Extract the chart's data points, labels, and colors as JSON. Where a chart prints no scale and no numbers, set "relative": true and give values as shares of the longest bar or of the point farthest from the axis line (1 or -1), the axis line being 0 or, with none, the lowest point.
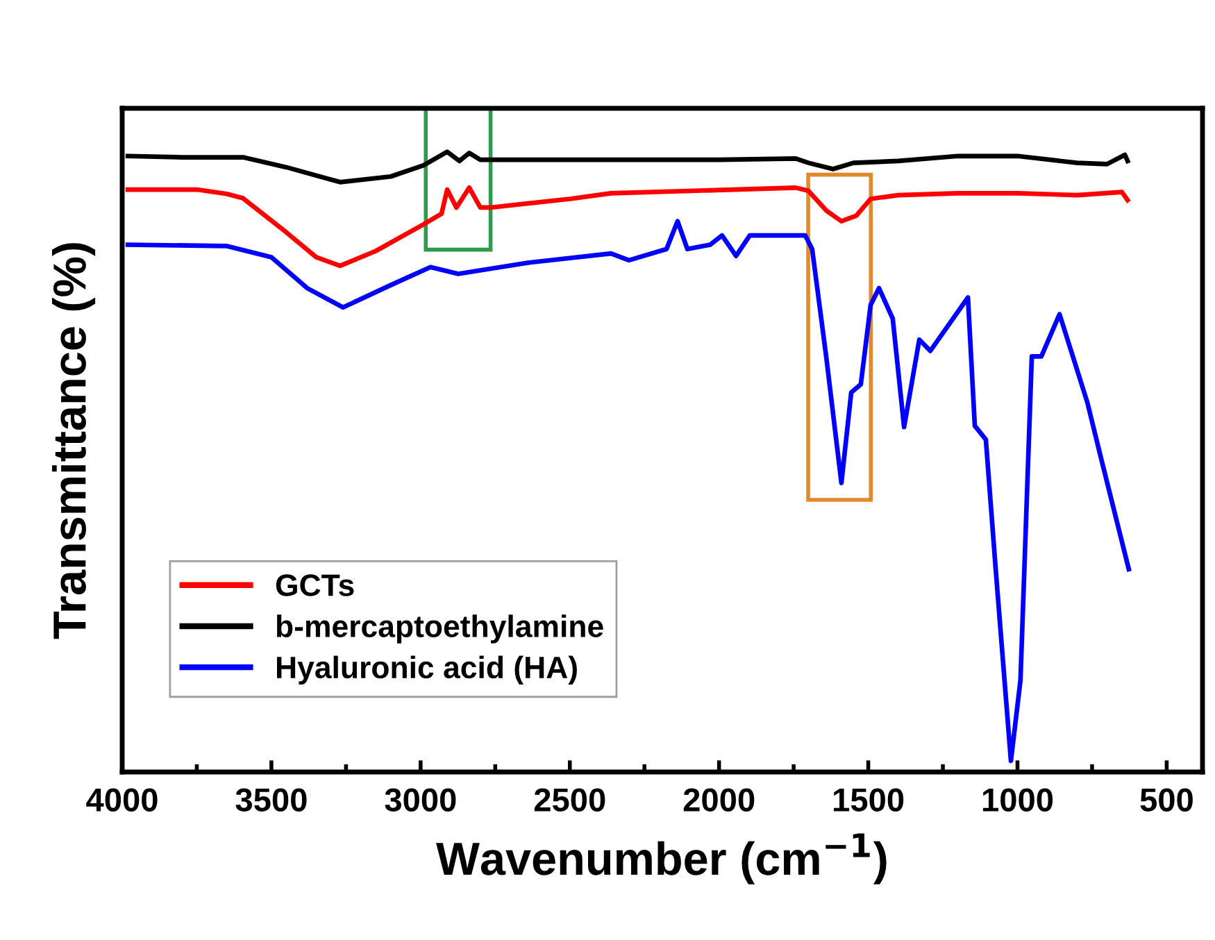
{
  "chart_data": {
    "type": "line",
    "relative": true,
    "xlabel": "Wavenumber (cm$^{−1}$)",
    "ylabel": "Transmittance (%)",
    "xlim": [
      4000,
      380
    ],
    "xticks": [
      4000,
      {
        "value": 3750,
        "label": null
      },
      3500,
      {
        "value": 3250,
        "label": null
      },
      3000,
      {
        "value": 2750,
        "label": null
      },
      2500,
      {
        "value": 2250,
        "label": null
      },
      2000,
      {
        "value": 1750,
        "label": null
      },
      1500,
      {
        "value": 1250,
        "label": null
      },
      1000,
      {
        "value": 750,
        "label": null
      },
      500
    ],
    "tick_labels": "x",
    "grid": false,
    "legend": "bottom left",
    "marker": "none",
    "line_style": "solid",
    "series": [
      {
        "name": "GCTs",
        "color": "#ff0000",
        "x": [
          3981,
          3750,
          3650,
          3595,
          3450,
          3350,
          3270,
          3150,
          2990,
          2930,
          2911,
          2880,
          2837,
          2800,
          2767,
          2500,
          2362,
          1743,
          1701,
          1640,
          1590,
          1540,
          1492,
          1400,
          1200,
          1000,
          800,
          650,
          631
        ],
        "values": [
          0.939,
          0.939,
          0.932,
          0.925,
          0.87,
          0.83,
          0.816,
          0.84,
          0.883,
          0.9,
          0.939,
          0.91,
          0.942,
          0.91,
          0.91,
          0.924,
          0.933,
          0.942,
          0.937,
          0.905,
          0.888,
          0.897,
          0.924,
          0.93,
          0.933,
          0.933,
          0.93,
          0.935,
          0.922
        ]
      },
      {
        "name": "b-mercaptoethylamine",
        "color": "#000000",
        "x": [
          3981,
          3800,
          3595,
          3450,
          3270,
          3100,
          2990,
          2911,
          2870,
          2837,
          2800,
          2500,
          2000,
          1743,
          1700,
          1618,
          1550,
          1400,
          1200,
          1000,
          800,
          700,
          640,
          631
        ],
        "values": [
          0.993,
          0.991,
          0.991,
          0.975,
          0.951,
          0.96,
          0.978,
          1.0,
          0.985,
          0.998,
          0.987,
          0.987,
          0.987,
          0.989,
          0.982,
          0.972,
          0.982,
          0.985,
          0.993,
          0.993,
          0.982,
          0.98,
          0.995,
          0.985
        ]
      },
      {
        "name": "Hyaluronic acid (HA)",
        "color": "#0000ff",
        "x": [
          3981,
          3651,
          3500,
          3380,
          3260,
          3100,
          2967,
          2874,
          2641,
          2362,
          2302,
          2176,
          2139,
          2106,
          2030,
          1990,
          1943,
          1897,
          1711,
          1688,
          1641,
          1590,
          1557,
          1525,
          1492,
          1464,
          1418,
          1380,
          1329,
          1292,
          1166,
          1143,
          1106,
          1073,
          1022,
          990,
          952,
          920,
          859,
          766,
          720,
          627
        ],
        "values": [
          0.85,
          0.848,
          0.83,
          0.78,
          0.749,
          0.785,
          0.814,
          0.803,
          0.821,
          0.836,
          0.825,
          0.843,
          0.888,
          0.843,
          0.85,
          0.865,
          0.832,
          0.865,
          0.865,
          0.843,
          0.67,
          0.466,
          0.612,
          0.625,
          0.753,
          0.78,
          0.731,
          0.556,
          0.697,
          0.679,
          0.765,
          0.558,
          0.536,
          0.327,
          0.018,
          0.148,
          0.67,
          0.67,
          0.738,
          0.596,
          0.506,
          0.327
        ]
      }
    ]
  }
}
